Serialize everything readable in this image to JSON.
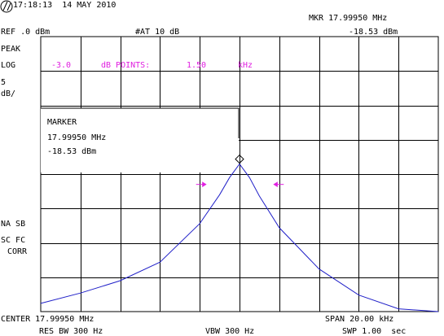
{
  "header": {
    "timestamp": "17:18:13  14 MAY 2010",
    "ref_level": "REF .0 dBm",
    "attenuation": "#AT 10 dB",
    "marker_freq": "MKR 17.99950 MHz",
    "marker_level": "-18.53 dBm"
  },
  "left_panel": {
    "detector": "PEAK",
    "scale_type": "LOG",
    "scale_value": "5",
    "scale_unit": "dB/",
    "na_sb": "NA SB",
    "sc_fc": "SC FC",
    "corr": "CORR"
  },
  "db_points": {
    "level": "-3.0",
    "label": "dB POINTS:",
    "value": "1.50",
    "unit": "kHz"
  },
  "marker_box": {
    "title": "MARKER",
    "freq": "17.99950 MHz",
    "level": "-18.53 dBm"
  },
  "footer": {
    "center": "CENTER 17.99950 MHz",
    "span": "SPAN 20.00 kHz",
    "res_bw": "RES BW 300 Hz",
    "vbw": "VBW 300 Hz",
    "sweep": "SWP 1.00  sec"
  },
  "colors": {
    "trace": "#2020c8",
    "annotation": "#e020e0",
    "graticule": "#000000"
  },
  "icons": {
    "logo": "hp-logo-icon",
    "marker": "diamond-marker-icon",
    "db_arrows": "arrow-icon"
  },
  "chart_data": {
    "type": "line",
    "center_mhz": 17.9995,
    "span_khz": 20.0,
    "ref_level_dbm": 0.0,
    "scale_db_per_div": 5,
    "x_divisions": 10,
    "y_divisions": 8,
    "xlim_khz_offset": [
      -10,
      10
    ],
    "ylim_dbm": [
      -40,
      0
    ],
    "grid": true,
    "series": [
      {
        "x_khz_offset": [
          -10,
          -8,
          -6,
          -4,
          -2,
          -1,
          -0.5,
          0,
          0.5,
          1,
          2,
          4,
          6,
          8,
          10
        ],
        "y_dbm": [
          -38.8,
          -37.3,
          -35.5,
          -32.8,
          -27.2,
          -23.0,
          -20.5,
          -18.53,
          -20.5,
          -23.2,
          -27.8,
          -33.8,
          -37.6,
          -39.6,
          -40.0
        ]
      }
    ],
    "marker": {
      "x_khz_offset": 0,
      "y_dbm": -18.53
    },
    "db_points_arrows": {
      "left_khz_offset": -0.75,
      "right_khz_offset": 0.75,
      "y_dbm": -21.5
    }
  }
}
